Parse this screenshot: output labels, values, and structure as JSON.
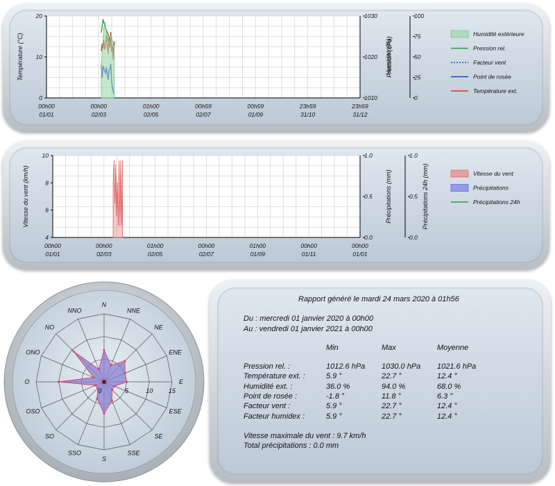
{
  "colors": {
    "humidity": "#9fd9a9",
    "pressure": "#2c9c3a",
    "windchill": "#1d3dd8",
    "dewpoint": "#1d3dd8",
    "temperature": "#e03131",
    "wind": "#e88a8a",
    "rain": "#7f86e8",
    "rain24": "#2c9c3a",
    "rose_fill": "#8a7fd6",
    "rose_edge": "#d44a6a"
  },
  "chart_data": [
    {
      "type": "line",
      "y_left_label": "Température (°C)",
      "y_right1_label": "Pression (hPa)",
      "y_right2_label": "Humidité (%)",
      "y_left_ticks": [
        "0",
        "10",
        "20"
      ],
      "y_right1_ticks": [
        "1010",
        "1020",
        "1030"
      ],
      "y_right2_ticks": [
        "0",
        "25",
        "50",
        "75",
        "100"
      ],
      "ylim_left": [
        0,
        20
      ],
      "ylim_right1": [
        1010,
        1030
      ],
      "ylim_right2": [
        0,
        100
      ],
      "x_ticks": [
        {
          "time": "00h00",
          "date": "01/01"
        },
        {
          "time": "00h00",
          "date": "02/03"
        },
        {
          "time": "01h00",
          "date": "02/05"
        },
        {
          "time": "00h59",
          "date": "02/07"
        },
        {
          "time": "00h59",
          "date": "01/09"
        },
        {
          "time": "23h59",
          "date": "31/10"
        },
        {
          "time": "23h59",
          "date": "31/12"
        }
      ],
      "legend": [
        "Humidité extérieure",
        "Pression rel.",
        "Facteur vent",
        "Point de rosée",
        "Température ext."
      ],
      "grid": true,
      "series": [
        {
          "name": "Température ext.",
          "axis": "left",
          "x": [
            "2020-03-05",
            "2020-03-06",
            "2020-03-07",
            "2020-03-08",
            "2020-03-09",
            "2020-03-10",
            "2020-03-11",
            "2020-03-12",
            "2020-03-13",
            "2020-03-14",
            "2020-03-15",
            "2020-03-16",
            "2020-03-17",
            "2020-03-18",
            "2020-03-19",
            "2020-03-20"
          ],
          "values": [
            11.5,
            13.2,
            12.0,
            14.0,
            11.8,
            12.9,
            15.3,
            13.0,
            10.8,
            14.6,
            12.3,
            16.0,
            11.2,
            12.5,
            9.5,
            13.8
          ]
        },
        {
          "name": "Point de rosée",
          "axis": "left",
          "x": [
            "2020-03-05",
            "2020-03-06",
            "2020-03-07",
            "2020-03-08",
            "2020-03-09",
            "2020-03-10",
            "2020-03-11",
            "2020-03-12",
            "2020-03-13",
            "2020-03-14",
            "2020-03-15",
            "2020-03-16",
            "2020-03-17",
            "2020-03-18",
            "2020-03-19",
            "2020-03-20"
          ],
          "values": [
            8.0,
            5.0,
            7.8,
            7.2,
            6.5,
            6.0,
            7.5,
            5.8,
            4.5,
            6.8,
            7.0,
            8.2,
            4.0,
            2.5,
            1.5,
            0.8
          ]
        },
        {
          "name": "Pression rel.",
          "axis": "right1",
          "x": [
            "2020-03-05",
            "2020-03-06",
            "2020-03-07",
            "2020-03-08",
            "2020-03-09",
            "2020-03-10",
            "2020-03-11",
            "2020-03-12",
            "2020-03-13",
            "2020-03-14",
            "2020-03-15",
            "2020-03-16",
            "2020-03-17",
            "2020-03-18",
            "2020-03-19",
            "2020-03-20"
          ],
          "values": [
            1026.0,
            1027.5,
            1029.0,
            1028.5,
            1027.8,
            1027.0,
            1026.5,
            1026.0,
            1025.5,
            1024.8,
            1024.0,
            1023.5,
            1023.0,
            1022.5,
            1022.0,
            1021.5
          ]
        },
        {
          "name": "Humidité extérieure",
          "axis": "right2",
          "x": [
            "2020-03-05",
            "2020-03-06",
            "2020-03-07",
            "2020-03-08",
            "2020-03-09",
            "2020-03-10",
            "2020-03-11",
            "2020-03-12",
            "2020-03-13",
            "2020-03-14",
            "2020-03-15",
            "2020-03-16",
            "2020-03-17",
            "2020-03-18",
            "2020-03-19",
            "2020-03-20"
          ],
          "values": [
            40,
            55,
            70,
            85,
            92,
            88,
            80,
            75,
            70,
            68,
            72,
            76,
            74,
            70,
            66,
            60
          ]
        }
      ]
    },
    {
      "type": "line",
      "y_left_label": "Vitesse du vent (km/h)",
      "y_right1_label": "Précipitations (mm)",
      "y_right2_label": "Précipitations 24h (mm)",
      "y_left_ticks": [
        "4",
        "6",
        "8",
        "10"
      ],
      "y_right1_ticks": [
        "0.0",
        "0.5",
        "1.0"
      ],
      "y_right2_ticks": [
        "0.0",
        "0.5",
        "1.0"
      ],
      "ylim_left": [
        4,
        10
      ],
      "ylim_right1": [
        0,
        1
      ],
      "ylim_right2": [
        0,
        1
      ],
      "x_ticks": [
        {
          "time": "00h00",
          "date": "01/01"
        },
        {
          "time": "00h00",
          "date": "02/03"
        },
        {
          "time": "01h00",
          "date": "02/05"
        },
        {
          "time": "00h00",
          "date": "02/07"
        },
        {
          "time": "01h00",
          "date": "01/09"
        },
        {
          "time": "00h00",
          "date": "01/11"
        },
        {
          "time": "00h00",
          "date": "01/01"
        }
      ],
      "legend": [
        "Vitesse du vent",
        "Précipitations",
        "Précipitations 24h"
      ],
      "grid": true,
      "series": [
        {
          "name": "Vitesse du vent",
          "axis": "left",
          "x": [
            "2020-03-13",
            "2020-03-14",
            "2020-03-15",
            "2020-03-16",
            "2020-03-17",
            "2020-03-18",
            "2020-03-19",
            "2020-03-20",
            "2020-03-21",
            "2020-03-22",
            "2020-03-23",
            "2020-03-24"
          ],
          "values": [
            8.0,
            9.6,
            6.5,
            9.3,
            5.6,
            8.0,
            4.9,
            9.6,
            4.9,
            9.6,
            4.9,
            9.6
          ]
        },
        {
          "name": "Précipitations",
          "axis": "right1",
          "x": [],
          "values": []
        },
        {
          "name": "Précipitations 24h",
          "axis": "right2",
          "x": [],
          "values": []
        }
      ]
    },
    {
      "type": "radar",
      "directions": [
        "N",
        "NNE",
        "NE",
        "ENE",
        "E",
        "ESE",
        "SE",
        "SSE",
        "S",
        "SSO",
        "SO",
        "OSO",
        "O",
        "ONO",
        "NO",
        "NNO"
      ],
      "radial_ticks": [
        "0",
        "5",
        "10",
        "15"
      ],
      "rmax": 15,
      "values": [
        7.0,
        4.0,
        6.5,
        5.0,
        5.0,
        2.5,
        2.5,
        4.5,
        7.0,
        4.0,
        2.0,
        2.0,
        10.0,
        2.5,
        9.5,
        3.0
      ]
    }
  ],
  "report": {
    "title": "Rapport généré le mardi 24 mars 2020 à 01h56",
    "from": "Du : mercredi 01 janvier 2020 à 00h00",
    "to": "Au : vendredi 01 janvier 2021 à 00h00",
    "col_min": "Min",
    "col_max": "Max",
    "col_avg": "Moyenne",
    "rows": [
      {
        "label": "Pression rel. :",
        "min": "1012.6 hPa",
        "max": "1030.0 hPa",
        "avg": "1021.6 hPa"
      },
      {
        "label": "Température ext. :",
        "min": "5.9 °",
        "max": "22.7 °",
        "avg": "12.4 °"
      },
      {
        "label": "Humidité ext. :",
        "min": "36.0 %",
        "max": "94.0 %",
        "avg": "68.0 %"
      },
      {
        "label": "Point de rosée :",
        "min": "-1.8 °",
        "max": "11.8 °",
        "avg": "6.3 °"
      },
      {
        "label": "Facteur vent :",
        "min": "5.9 °",
        "max": "22.7 °",
        "avg": "12.4 °"
      },
      {
        "label": "Facteur humidex :",
        "min": "5.9 °",
        "max": "22.7 °",
        "avg": "12.4 °"
      }
    ],
    "max_wind": "Vitesse maximale du vent : 9.7 km/h",
    "total_rain": "Total précipitations : 0.0 mm"
  }
}
